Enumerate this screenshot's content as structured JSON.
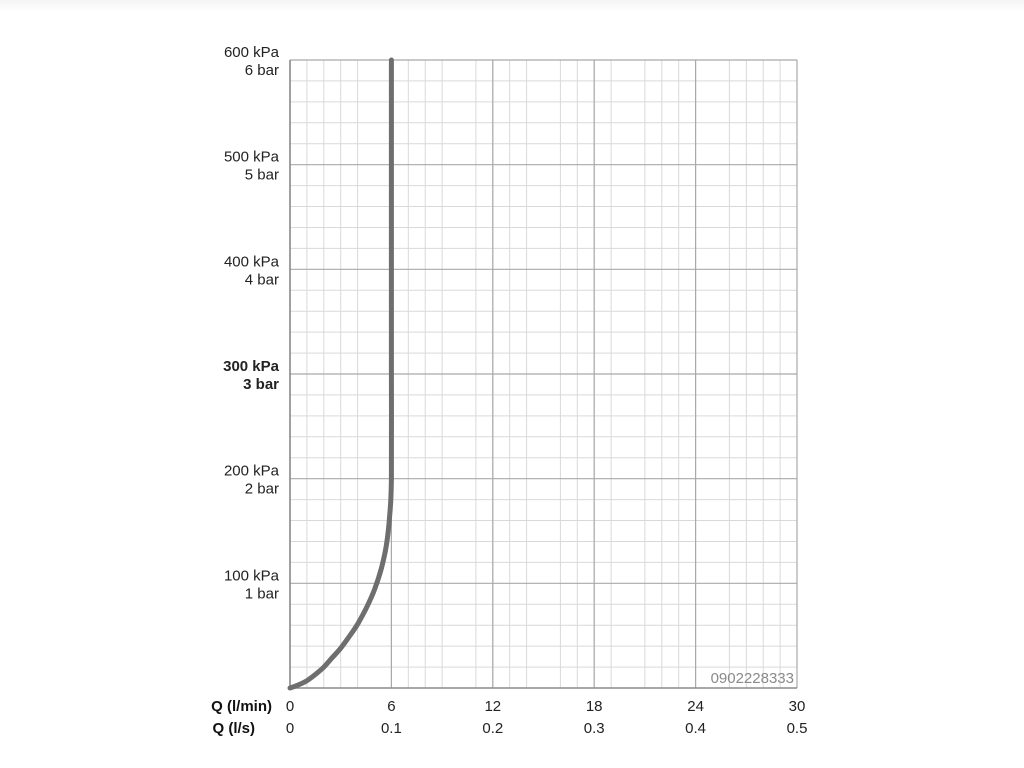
{
  "chart_data": {
    "type": "line",
    "title": "",
    "xlim": [
      0,
      30
    ],
    "ylim": [
      0,
      600
    ],
    "x_axis_primary": {
      "title": "Q (l/min)",
      "ticks": [
        "0",
        "6",
        "12",
        "18",
        "24",
        "30"
      ],
      "tick_values": [
        0,
        6,
        12,
        18,
        24,
        30
      ]
    },
    "x_axis_secondary": {
      "title": "Q (l/s)",
      "ticks": [
        "0",
        "0.1",
        "0.2",
        "0.3",
        "0.4",
        "0.5"
      ]
    },
    "y_axis": {
      "tick_values": [
        100,
        200,
        300,
        400,
        500,
        600
      ],
      "ticks_kpa": [
        "100 kPa",
        "200 kPa",
        "300 kPa",
        "400 kPa",
        "500 kPa",
        "600 kPa"
      ],
      "ticks_bar": [
        "1 bar",
        "2 bar",
        "3 bar",
        "4 bar",
        "5 bar",
        "6 bar"
      ],
      "highlighted": "300 kPa"
    },
    "grid": true,
    "series": [
      {
        "color": "#6e6e6e",
        "points": [
          [
            0,
            0
          ],
          [
            0.5,
            3
          ],
          [
            1,
            7
          ],
          [
            1.5,
            13
          ],
          [
            2,
            20
          ],
          [
            2.5,
            29
          ],
          [
            3,
            38
          ],
          [
            3.5,
            49
          ],
          [
            4,
            61
          ],
          [
            4.5,
            76
          ],
          [
            5,
            94
          ],
          [
            5.4,
            114
          ],
          [
            5.7,
            136
          ],
          [
            5.9,
            165
          ],
          [
            6,
            200
          ],
          [
            6,
            300
          ],
          [
            6,
            400
          ],
          [
            6,
            500
          ],
          [
            6,
            600
          ]
        ]
      }
    ],
    "watermark": "0902228333"
  }
}
